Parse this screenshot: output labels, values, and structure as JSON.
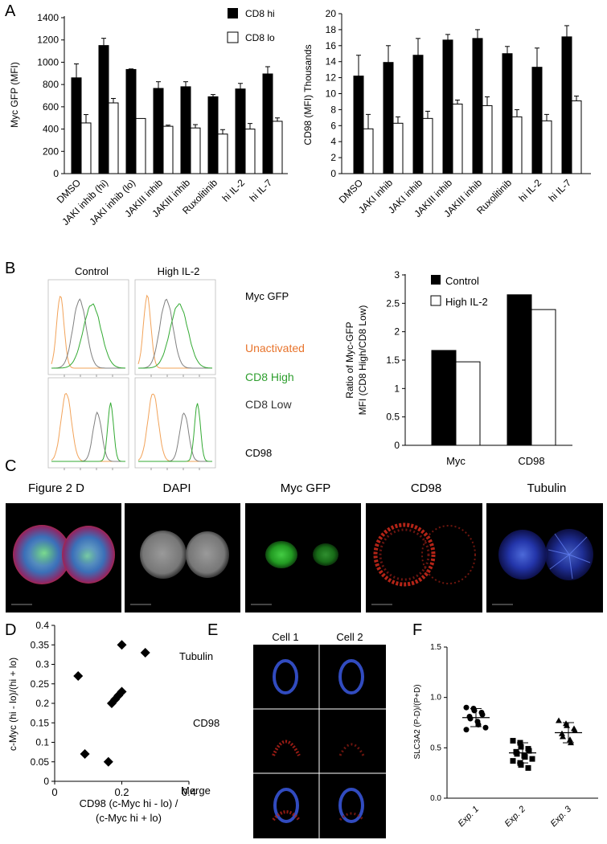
{
  "panel_labels": {
    "a": "A",
    "b": "B",
    "c": "C",
    "d": "D",
    "e": "E",
    "f": "F"
  },
  "colors": {
    "hi": "#000000",
    "lo": "#ffffff",
    "orange": "#f2a35a",
    "green": "#33aa33",
    "gray": "#808080",
    "unactivated_text": "#e8742c",
    "cd8high_text": "#2e9e2e"
  },
  "panel_a_left": {
    "ylabel": "Myc GFP (MFI)",
    "legend": [
      "CD8 hi",
      "CD8 lo"
    ],
    "yticks": [
      "0",
      "200",
      "400",
      "600",
      "800",
      "1000",
      "1200",
      "1400"
    ]
  },
  "panel_a_right": {
    "ylabel": "CD98 (MFI)  Thousands",
    "yticks": [
      "0",
      "2",
      "4",
      "6",
      "8",
      "10",
      "12",
      "14",
      "16",
      "18",
      "20"
    ]
  },
  "panel_b_histo": {
    "col_titles": [
      "Control",
      "High IL-2"
    ],
    "row_labels": {
      "myc": "Myc GFP",
      "cd98": "CD98"
    },
    "legend": {
      "unactivated": "Unactivated",
      "cd8_high": "CD8 High",
      "cd8_low": "CD8 Low"
    }
  },
  "panel_b_bar": {
    "ylabel_line1": "Ratio of Myc-GFP",
    "ylabel_line2": "MFI (CD8 High/CD8 Low)",
    "legend": [
      "Control",
      "High IL-2"
    ],
    "yticks": [
      "0",
      "0.5",
      "1",
      "1.5",
      "2",
      "2.5",
      "3"
    ]
  },
  "panel_c": {
    "titles": [
      "Figure 2 D",
      "DAPI",
      "Myc GFP",
      "CD98",
      "Tubulin"
    ]
  },
  "panel_d": {
    "ylabel": "c-Myc (hi - lo)/(hi + lo)",
    "xlabel_line1": "CD98 (c-Myc hi - lo) /",
    "xlabel_line2": "(c-Myc hi + lo)",
    "yticks": [
      "0",
      "0.05",
      "0.1",
      "0.15",
      "0.2",
      "0.25",
      "0.3",
      "0.35",
      "0.4"
    ],
    "xticks": [
      "0",
      "0.2",
      "0.4"
    ]
  },
  "panel_e": {
    "col_titles": [
      "Cell 1",
      "Cell 2"
    ],
    "row_labels": [
      "Tubulin",
      "CD98",
      "Merge"
    ]
  },
  "panel_f": {
    "ylabel": "SLC3A2 (P-D)/(P+D)",
    "yticks": [
      "0.0",
      "0.5",
      "1.0",
      "1.5"
    ],
    "xticks": [
      "Exp. 1",
      "Exp. 2",
      "Exp. 3"
    ]
  },
  "chart_data": [
    {
      "type": "bar",
      "panel": "A-left",
      "categories": [
        "DMSO",
        "JAKI inhib (hi)",
        "JAKI inhib (lo)",
        "JAKIII inhib",
        "JAKIII inhib",
        "Ruxolitinib",
        "hi IL-2",
        "hi IL-7"
      ],
      "series": [
        {
          "name": "CD8 hi",
          "values": [
            860,
            1150,
            935,
            765,
            780,
            690,
            760,
            895
          ],
          "errors": [
            125,
            65,
            5,
            60,
            45,
            20,
            50,
            65
          ]
        },
        {
          "name": "CD8 lo",
          "values": [
            455,
            635,
            495,
            425,
            410,
            355,
            400,
            470
          ],
          "errors": [
            75,
            40,
            0,
            10,
            30,
            40,
            50,
            30
          ]
        }
      ],
      "ylim": [
        0,
        1400
      ],
      "ylabel": "Myc GFP (MFI)",
      "legend_position": "top-right"
    },
    {
      "type": "bar",
      "panel": "A-right",
      "categories": [
        "DMSO",
        "JAKI inhib",
        "JAKI inhib",
        "JAKIII inhib",
        "JAKIII inhib",
        "Ruxolitinib",
        "hi IL-2",
        "hi IL-7"
      ],
      "series": [
        {
          "name": "CD8 hi",
          "values": [
            12.2,
            13.9,
            14.8,
            16.7,
            16.9,
            15.0,
            13.3,
            17.1
          ],
          "errors": [
            2.6,
            2.1,
            2.1,
            0.7,
            1.1,
            0.9,
            2.4,
            1.4
          ]
        },
        {
          "name": "CD8 lo",
          "values": [
            5.6,
            6.3,
            6.9,
            8.7,
            8.5,
            7.1,
            6.6,
            9.1
          ],
          "errors": [
            1.8,
            0.8,
            0.9,
            0.5,
            1.1,
            0.9,
            0.8,
            0.6
          ]
        }
      ],
      "ylim": [
        0,
        20
      ],
      "ylabel": "CD98 (MFI)  Thousands"
    },
    {
      "type": "bar",
      "panel": "B",
      "categories": [
        "Myc",
        "CD98"
      ],
      "series": [
        {
          "name": "Control",
          "values": [
            1.67,
            2.65
          ]
        },
        {
          "name": "High IL-2",
          "values": [
            1.47,
            2.39
          ]
        }
      ],
      "ylim": [
        0,
        3
      ],
      "ylabel": "Ratio of Myc-GFP MFI (CD8 High/CD8 Low)",
      "legend_position": "top-left"
    },
    {
      "type": "scatter",
      "panel": "D",
      "points": [
        [
          0.07,
          0.27
        ],
        [
          0.09,
          0.07
        ],
        [
          0.16,
          0.05
        ],
        [
          0.17,
          0.2
        ],
        [
          0.18,
          0.21
        ],
        [
          0.19,
          0.22
        ],
        [
          0.2,
          0.23
        ],
        [
          0.2,
          0.35
        ],
        [
          0.27,
          0.33
        ]
      ],
      "xlim": [
        0,
        0.4
      ],
      "ylim": [
        0,
        0.4
      ]
    },
    {
      "type": "scatter",
      "panel": "F",
      "groups": [
        {
          "name": "Exp. 1",
          "values": [
            0.9,
            0.89,
            0.87,
            0.85,
            0.83,
            0.81,
            0.79,
            0.76,
            0.73,
            0.7,
            0.68
          ],
          "mean": 0.8,
          "sd": 0.09
        },
        {
          "name": "Exp. 2",
          "values": [
            0.57,
            0.55,
            0.51,
            0.49,
            0.47,
            0.46,
            0.44,
            0.42,
            0.41,
            0.39,
            0.37,
            0.35,
            0.33,
            0.3
          ],
          "mean": 0.45,
          "sd": 0.1
        },
        {
          "name": "Exp. 3",
          "values": [
            0.77,
            0.74,
            0.72,
            0.69,
            0.67,
            0.64,
            0.61,
            0.58,
            0.55
          ],
          "mean": 0.65,
          "sd": 0.1
        }
      ],
      "ylim": [
        0,
        1.5
      ],
      "ylabel": "SLC3A2 (P-D)/(P+D)"
    }
  ]
}
